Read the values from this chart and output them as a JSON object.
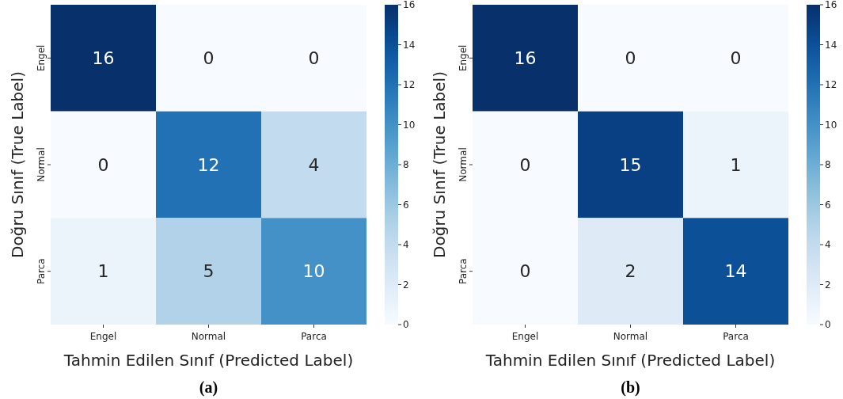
{
  "chart_data": [
    {
      "type": "heatmap",
      "xlabel": "Tahmin Edilen Sınıf (Predicted Label)",
      "ylabel": "Doğru Sınıf (True Label)",
      "categories": [
        "Engel",
        "Normal",
        "Parca"
      ],
      "y_categories": [
        "Engel",
        "Normal",
        "Parca"
      ],
      "cells": [
        [
          16,
          0,
          0
        ],
        [
          0,
          12,
          4
        ],
        [
          1,
          5,
          10
        ]
      ],
      "data_labels": true,
      "clim": [
        0,
        16
      ],
      "cticks": [
        0,
        2,
        4,
        6,
        8,
        10,
        12,
        14,
        16
      ],
      "annotations": [
        "(a)"
      ]
    },
    {
      "type": "heatmap",
      "xlabel": "Tahmin Edilen Sınıf (Predicted Label)",
      "ylabel": "Doğru Sınıf (True Label)",
      "categories": [
        "Engel",
        "Normal",
        "Parca"
      ],
      "y_categories": [
        "Engel",
        "Normal",
        "Parca"
      ],
      "cells": [
        [
          16,
          0,
          0
        ],
        [
          0,
          15,
          1
        ],
        [
          0,
          2,
          14
        ]
      ],
      "data_labels": true,
      "clim": [
        0,
        16
      ],
      "cticks": [
        0,
        2,
        4,
        6,
        8,
        10,
        12,
        14,
        16
      ],
      "annotations": [
        "(b)"
      ]
    }
  ]
}
